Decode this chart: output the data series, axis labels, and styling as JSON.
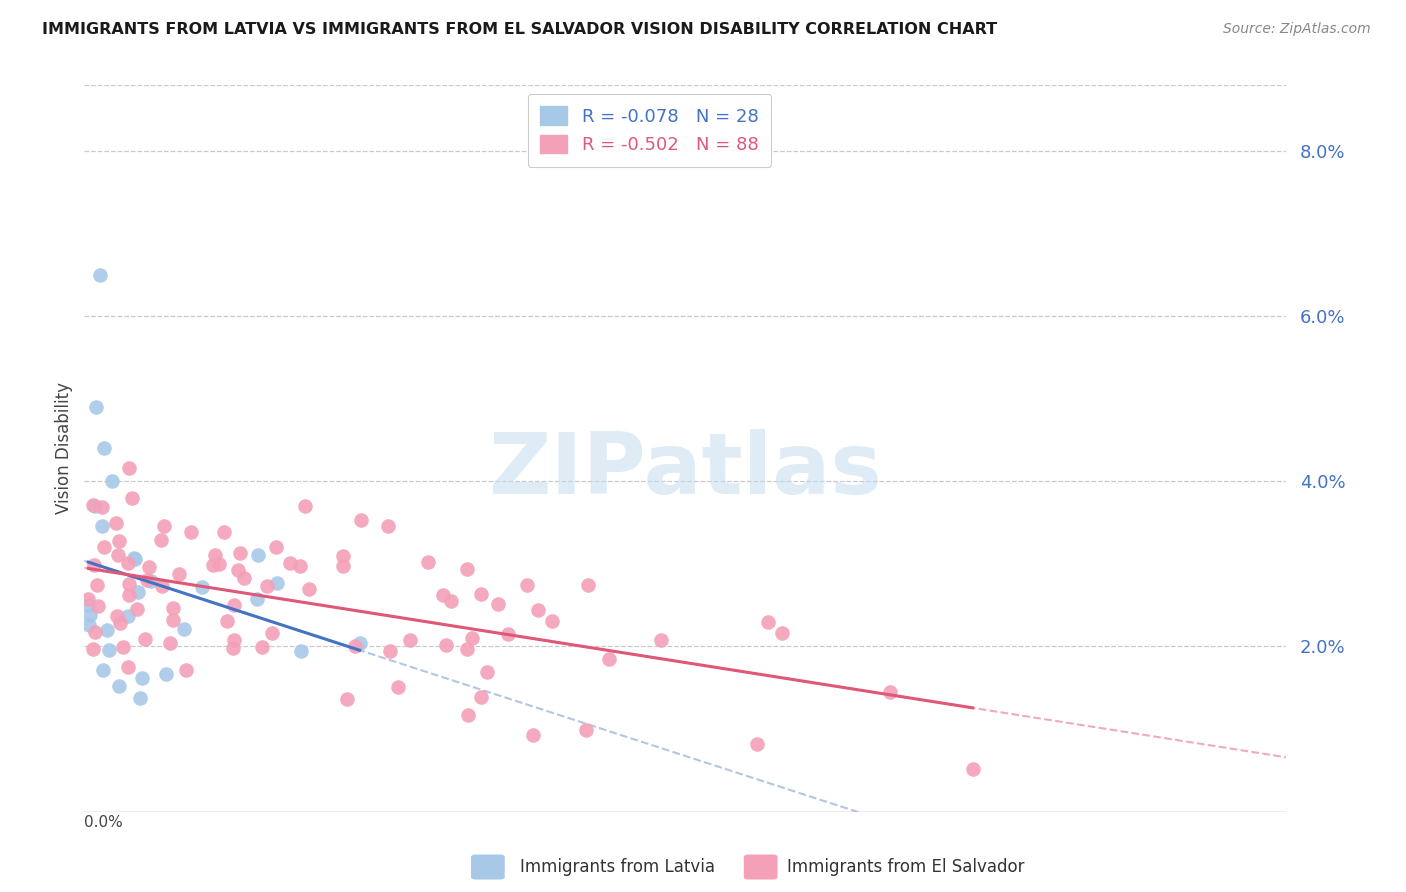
{
  "title": "IMMIGRANTS FROM LATVIA VS IMMIGRANTS FROM EL SALVADOR VISION DISABILITY CORRELATION CHART",
  "source": "Source: ZipAtlas.com",
  "ylabel": "Vision Disability",
  "right_ytick_labels": [
    "2.0%",
    "4.0%",
    "6.0%",
    "8.0%"
  ],
  "right_ytick_values": [
    0.02,
    0.04,
    0.06,
    0.08
  ],
  "latvia_color": "#a8c8e8",
  "salvador_color": "#f4a0b8",
  "trend_latvia_color": "#4472c4",
  "trend_salvador_color": "#e05878",
  "trend_dashed_color": "#a0b8d8",
  "xmin": 0.0,
  "xmax": 0.3,
  "ymin": 0.0,
  "ymax": 0.088,
  "R_latvia": -0.078,
  "N_latvia": 28,
  "R_salvador": -0.502,
  "N_salvador": 88,
  "legend_label_latvia": "R = -0.078   N = 28",
  "legend_label_salvador": "R = -0.502   N = 88",
  "bottom_legend_latvia": "Immigrants from Latvia",
  "bottom_legend_salvador": "Immigrants from El Salvador",
  "watermark": "ZIPatlas",
  "grid_color": "#c8c8d0",
  "grid_style": "--"
}
